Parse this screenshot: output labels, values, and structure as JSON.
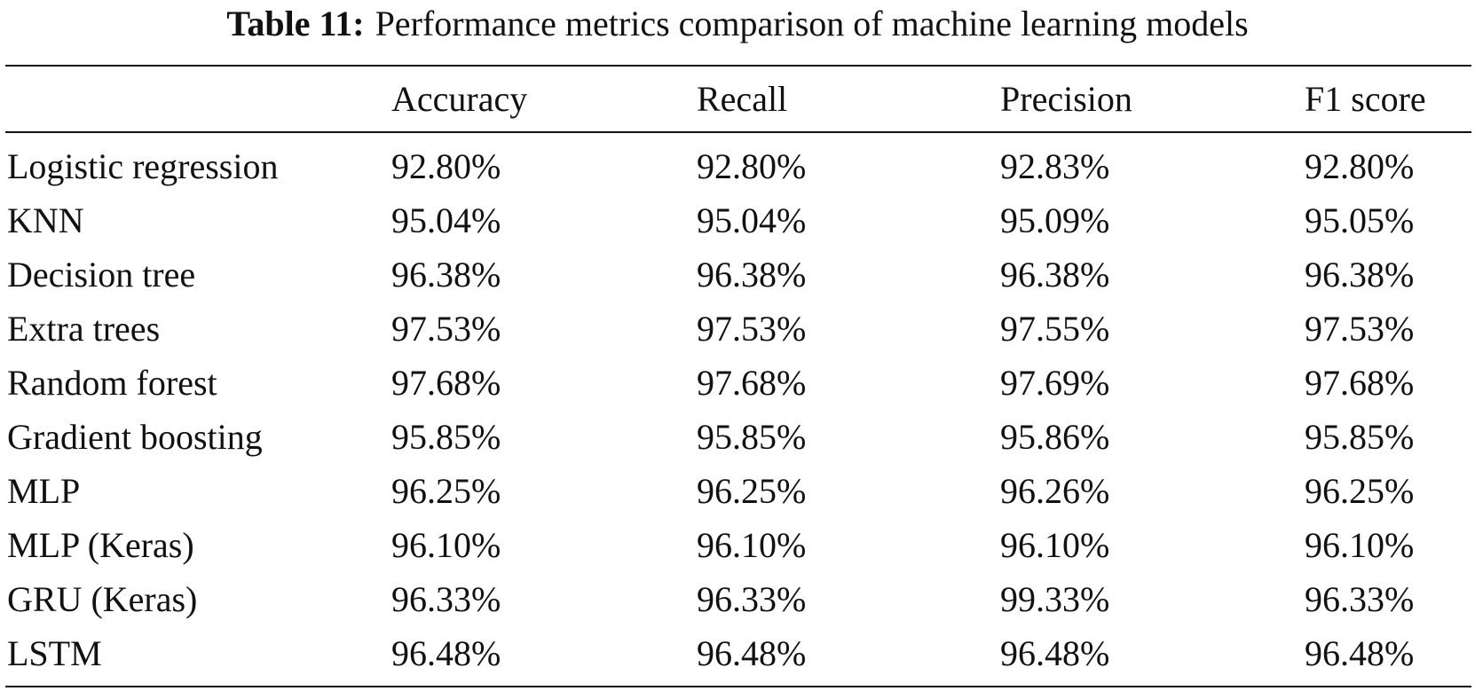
{
  "caption": {
    "label": "Table 11:",
    "text": "Performance metrics comparison of machine learning models"
  },
  "table": {
    "headers": [
      "",
      "Accuracy",
      "Recall",
      "Precision",
      "F1 score"
    ],
    "rows": [
      {
        "model": "Logistic regression",
        "accuracy": "92.80%",
        "recall": "92.80%",
        "precision": "92.83%",
        "f1": "92.80%"
      },
      {
        "model": "KNN",
        "accuracy": "95.04%",
        "recall": "95.04%",
        "precision": "95.09%",
        "f1": "95.05%"
      },
      {
        "model": "Decision tree",
        "accuracy": "96.38%",
        "recall": "96.38%",
        "precision": "96.38%",
        "f1": "96.38%"
      },
      {
        "model": "Extra trees",
        "accuracy": "97.53%",
        "recall": "97.53%",
        "precision": "97.55%",
        "f1": "97.53%"
      },
      {
        "model": "Random forest",
        "accuracy": "97.68%",
        "recall": "97.68%",
        "precision": "97.69%",
        "f1": "97.68%"
      },
      {
        "model": "Gradient boosting",
        "accuracy": "95.85%",
        "recall": "95.85%",
        "precision": "95.86%",
        "f1": "95.85%"
      },
      {
        "model": "MLP",
        "accuracy": "96.25%",
        "recall": "96.25%",
        "precision": "96.26%",
        "f1": "96.25%"
      },
      {
        "model": "MLP (Keras)",
        "accuracy": "96.10%",
        "recall": "96.10%",
        "precision": "96.10%",
        "f1": "96.10%"
      },
      {
        "model": "GRU (Keras)",
        "accuracy": "96.33%",
        "recall": "96.33%",
        "precision": "99.33%",
        "f1": "96.33%"
      },
      {
        "model": "LSTM",
        "accuracy": "96.48%",
        "recall": "96.48%",
        "precision": "96.48%",
        "f1": "96.48%"
      }
    ]
  }
}
